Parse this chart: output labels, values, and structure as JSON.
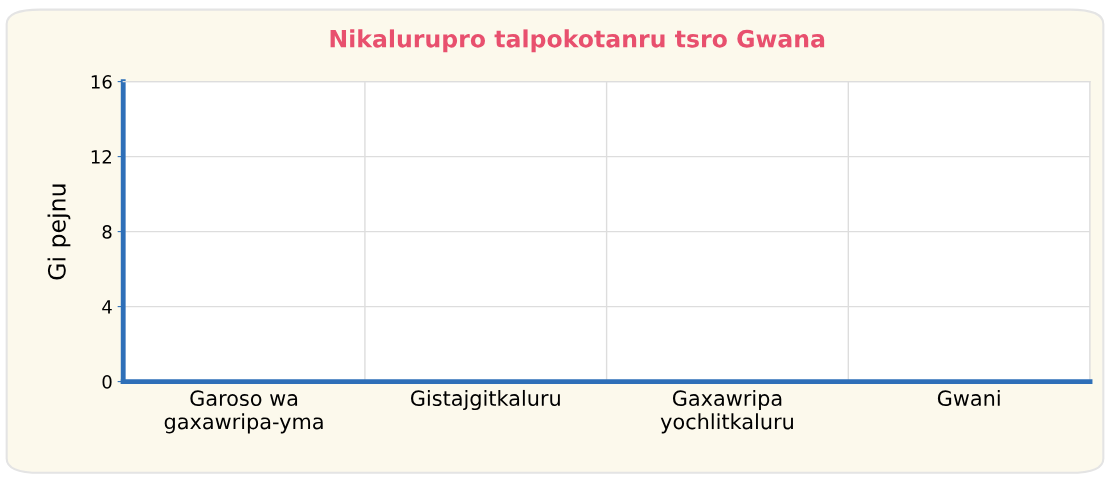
{
  "chart_data": {
    "type": "bar",
    "title": "Nikalurupro talpokotanru tsro Gwana",
    "ylabel": "Gi pejnu",
    "categories": [
      "Garoso wa\ngaxawripa-yma",
      "Gistajgitkaluru",
      "Gaxawripa\nyochlitkaluru",
      "Gwani"
    ],
    "values": [
      0,
      0,
      0,
      0
    ],
    "ylim": [
      0,
      16
    ],
    "yticks": [
      0,
      4,
      8,
      12,
      16
    ],
    "grid": true
  }
}
